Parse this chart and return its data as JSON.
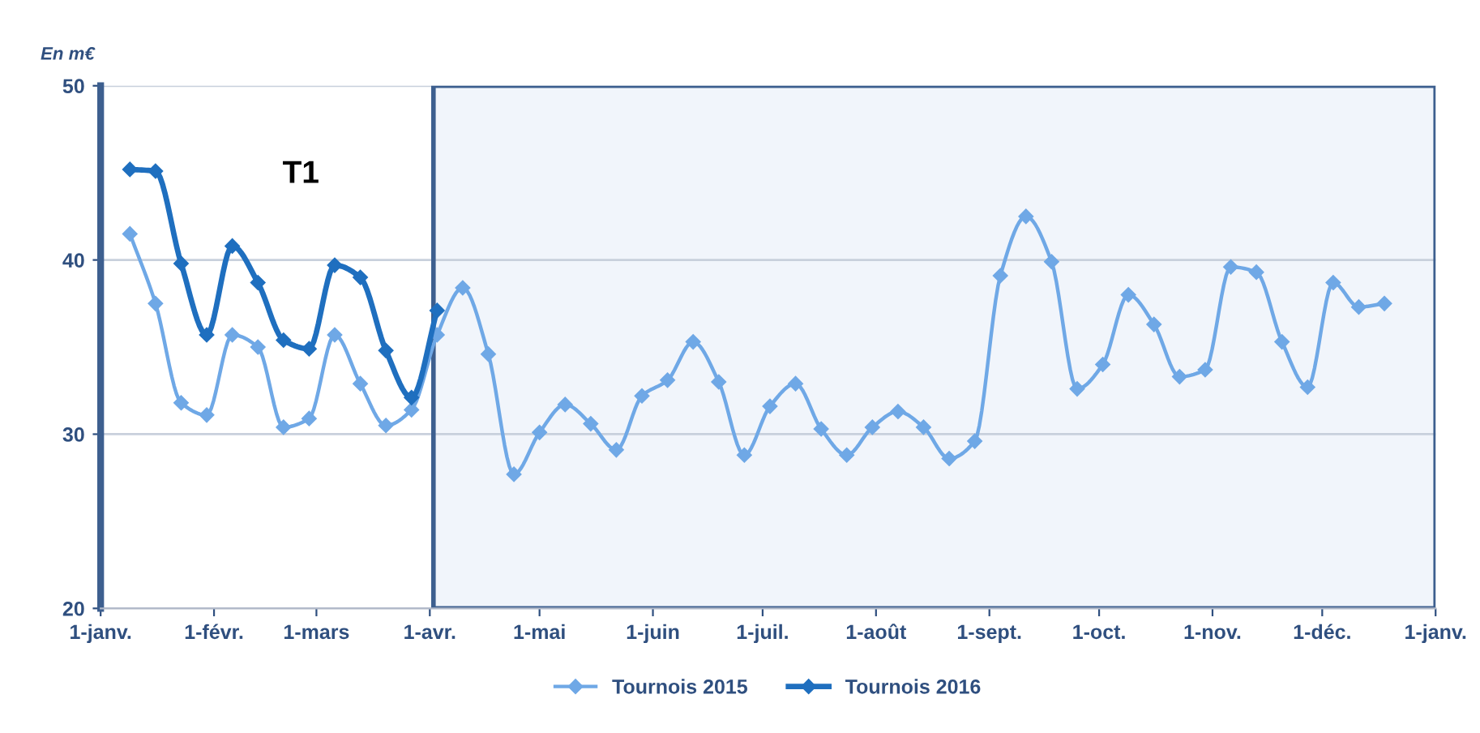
{
  "chart_data": {
    "type": "line",
    "ylabel": "En m€",
    "x": [
      "2015-01-09",
      "2015-01-16",
      "2015-01-23",
      "2015-01-30",
      "2015-02-06",
      "2015-02-13",
      "2015-02-20",
      "2015-02-27",
      "2015-03-06",
      "2015-03-13",
      "2015-03-20",
      "2015-03-27",
      "2015-04-03",
      "2015-04-10",
      "2015-04-17",
      "2015-04-24",
      "2015-05-01",
      "2015-05-08",
      "2015-05-15",
      "2015-05-22",
      "2015-05-29",
      "2015-06-05",
      "2015-06-12",
      "2015-06-19",
      "2015-06-26",
      "2015-07-03",
      "2015-07-10",
      "2015-07-17",
      "2015-07-24",
      "2015-07-31",
      "2015-08-07",
      "2015-08-14",
      "2015-08-21",
      "2015-08-28",
      "2015-09-04",
      "2015-09-11",
      "2015-09-18",
      "2015-09-25",
      "2015-10-02",
      "2015-10-09",
      "2015-10-16",
      "2015-10-23",
      "2015-10-30",
      "2015-11-06",
      "2015-11-13",
      "2015-11-20",
      "2015-11-27",
      "2015-12-04",
      "2015-12-11",
      "2015-12-18"
    ],
    "series": [
      {
        "name": "Tournois 2015",
        "color": "#6fa8e6",
        "values": [
          41.5,
          37.5,
          31.8,
          31.1,
          35.7,
          35.0,
          30.4,
          30.9,
          35.7,
          32.9,
          30.5,
          31.4,
          35.7,
          38.4,
          34.6,
          27.7,
          30.1,
          31.7,
          30.6,
          29.1,
          32.2,
          33.1,
          35.3,
          33.0,
          28.8,
          31.6,
          32.9,
          30.3,
          28.8,
          30.4,
          31.3,
          30.4,
          28.6,
          29.6,
          39.1,
          42.5,
          39.9,
          32.6,
          34.0,
          38.0,
          36.3,
          33.3,
          33.7,
          39.6,
          39.3,
          35.3,
          32.7,
          38.7,
          37.3,
          37.5
        ]
      },
      {
        "name": "Tournois 2016",
        "color": "#1f6fbf",
        "x": [
          "2015-01-09",
          "2015-01-16",
          "2015-01-23",
          "2015-01-30",
          "2015-02-06",
          "2015-02-13",
          "2015-02-20",
          "2015-02-27",
          "2015-03-06",
          "2015-03-13",
          "2015-03-20",
          "2015-03-27",
          "2015-04-03"
        ],
        "values": [
          45.2,
          45.1,
          39.8,
          35.7,
          40.8,
          38.7,
          35.4,
          34.9,
          39.7,
          39.0,
          34.8,
          32.1,
          37.1
        ]
      }
    ],
    "xlim": [
      "2015-01-01",
      "2016-01-01"
    ],
    "xticks": [
      {
        "value": "2015-01-01",
        "label": "1-janv."
      },
      {
        "value": "2015-02-01",
        "label": "1-févr."
      },
      {
        "value": "2015-03-01",
        "label": "1-mars"
      },
      {
        "value": "2015-04-01",
        "label": "1-avr."
      },
      {
        "value": "2015-05-01",
        "label": "1-mai"
      },
      {
        "value": "2015-06-01",
        "label": "1-juin"
      },
      {
        "value": "2015-07-01",
        "label": "1-juil."
      },
      {
        "value": "2015-08-01",
        "label": "1-août"
      },
      {
        "value": "2015-09-01",
        "label": "1-sept."
      },
      {
        "value": "2015-10-01",
        "label": "1-oct."
      },
      {
        "value": "2015-11-01",
        "label": "1-nov."
      },
      {
        "value": "2015-12-01",
        "label": "1-déc."
      },
      {
        "value": "2016-01-01",
        "label": "1-janv."
      }
    ],
    "ylim": [
      20,
      50
    ],
    "yticks": [
      20,
      30,
      40,
      50
    ],
    "bands": [
      {
        "axis": "x",
        "from": "2015-04-02",
        "to": "2016-01-01",
        "color": "#f1f5fb"
      }
    ],
    "annotations": [
      "T1"
    ],
    "grid": "y",
    "legend": "bottom",
    "marker": "diamond",
    "line_style": "solid"
  }
}
